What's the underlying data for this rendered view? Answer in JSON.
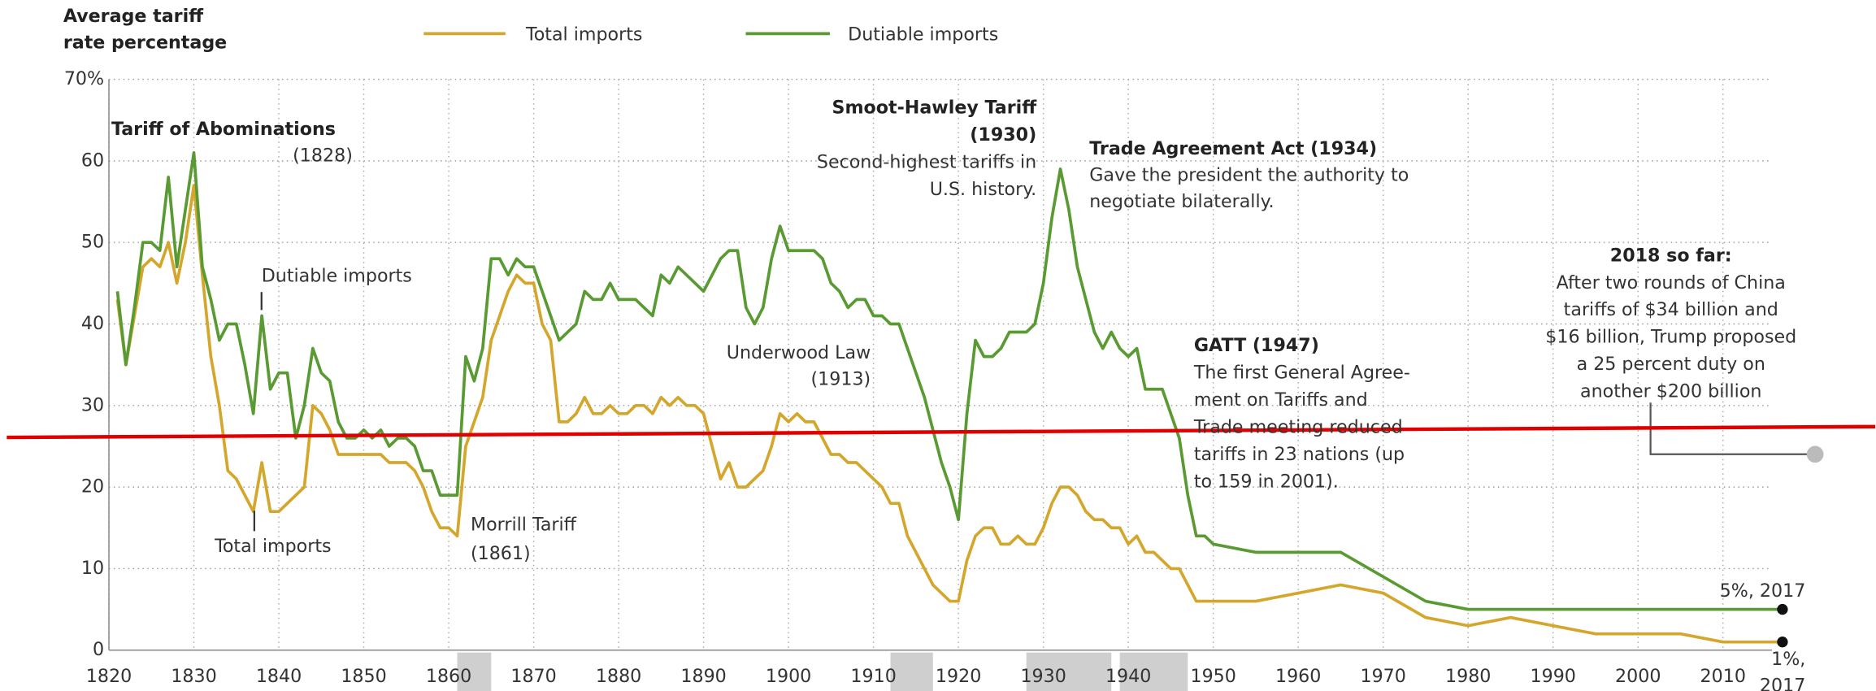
{
  "chart_data": {
    "type": "line",
    "y_label": [
      "Average tariff",
      "rate percentage"
    ],
    "x": [
      1821,
      1822,
      1823,
      1824,
      1825,
      1826,
      1827,
      1828,
      1829,
      1830,
      1831,
      1832,
      1833,
      1834,
      1835,
      1836,
      1837,
      1838,
      1839,
      1840,
      1841,
      1842,
      1843,
      1844,
      1845,
      1846,
      1847,
      1848,
      1849,
      1850,
      1851,
      1852,
      1853,
      1854,
      1855,
      1856,
      1857,
      1858,
      1859,
      1860,
      1861,
      1862,
      1863,
      1864,
      1865,
      1866,
      1867,
      1868,
      1869,
      1870,
      1871,
      1872,
      1873,
      1874,
      1875,
      1876,
      1877,
      1878,
      1879,
      1880,
      1881,
      1882,
      1883,
      1884,
      1885,
      1886,
      1887,
      1888,
      1889,
      1890,
      1891,
      1892,
      1893,
      1894,
      1895,
      1896,
      1897,
      1898,
      1899,
      1900,
      1901,
      1902,
      1903,
      1904,
      1905,
      1906,
      1907,
      1908,
      1909,
      1910,
      1911,
      1912,
      1913,
      1914,
      1915,
      1916,
      1917,
      1918,
      1919,
      1920,
      1921,
      1922,
      1923,
      1924,
      1925,
      1926,
      1927,
      1928,
      1929,
      1930,
      1931,
      1932,
      1933,
      1934,
      1935,
      1936,
      1937,
      1938,
      1939,
      1940,
      1941,
      1942,
      1943,
      1944,
      1945,
      1946,
      1947,
      1948,
      1949,
      1950,
      1955,
      1960,
      1965,
      1970,
      1975,
      1980,
      1985,
      1990,
      1995,
      2000,
      2005,
      2010,
      2015,
      2017
    ],
    "series": [
      {
        "name": "Total imports",
        "color": "#d4a72c",
        "values": [
          43,
          35,
          41,
          47,
          48,
          47,
          50,
          45,
          50,
          57,
          46,
          36,
          30,
          22,
          21,
          19,
          17,
          23,
          17,
          17,
          18,
          19,
          20,
          30,
          29,
          27,
          24,
          24,
          24,
          24,
          24,
          24,
          23,
          23,
          23,
          22,
          20,
          17,
          15,
          15,
          14,
          25,
          28,
          31,
          38,
          41,
          44,
          46,
          45,
          45,
          40,
          38,
          28,
          28,
          29,
          31,
          29,
          29,
          30,
          29,
          29,
          30,
          30,
          29,
          31,
          30,
          31,
          30,
          30,
          29,
          25,
          21,
          23,
          20,
          20,
          21,
          22,
          25,
          29,
          28,
          29,
          28,
          28,
          26,
          24,
          24,
          23,
          23,
          22,
          21,
          20,
          18,
          18,
          14,
          12,
          10,
          8,
          7,
          6,
          6,
          11,
          14,
          15,
          15,
          13,
          13,
          14,
          13,
          13,
          15,
          18,
          20,
          20,
          19,
          17,
          16,
          16,
          15,
          15,
          13,
          14,
          12,
          12,
          11,
          10,
          10,
          8,
          6,
          6,
          6,
          6,
          7,
          8,
          7,
          4,
          3,
          4,
          3,
          2,
          2,
          2,
          1,
          1,
          1
        ]
      },
      {
        "name": "Dutiable imports",
        "color": "#5a9a32",
        "values": [
          44,
          35,
          42,
          50,
          50,
          49,
          58,
          47,
          54,
          61,
          47,
          43,
          38,
          40,
          40,
          35,
          29,
          41,
          32,
          34,
          34,
          26,
          30,
          37,
          34,
          33,
          28,
          26,
          26,
          27,
          26,
          27,
          25,
          26,
          26,
          25,
          22,
          22,
          19,
          19,
          19,
          36,
          33,
          37,
          48,
          48,
          46,
          48,
          47,
          47,
          44,
          41,
          38,
          39,
          40,
          44,
          43,
          43,
          45,
          43,
          43,
          43,
          42,
          41,
          46,
          45,
          47,
          46,
          45,
          44,
          46,
          48,
          49,
          49,
          42,
          40,
          42,
          48,
          52,
          49,
          49,
          49,
          49,
          48,
          45,
          44,
          42,
          43,
          43,
          41,
          41,
          40,
          40,
          37,
          34,
          31,
          27,
          23,
          20,
          16,
          29,
          38,
          36,
          36,
          37,
          39,
          39,
          39,
          40,
          45,
          53,
          59,
          54,
          47,
          43,
          39,
          37,
          39,
          37,
          36,
          37,
          32,
          32,
          32,
          29,
          26,
          19,
          14,
          14,
          13,
          12,
          12,
          12,
          9,
          6,
          5,
          5,
          5,
          5,
          5,
          5,
          5,
          5,
          5
        ]
      }
    ],
    "xlim": [
      1820,
      2020
    ],
    "xticks": [
      1820,
      1830,
      1840,
      1850,
      1860,
      1870,
      1880,
      1890,
      1900,
      1910,
      1920,
      1930,
      1940,
      1950,
      1960,
      1970,
      1980,
      1990,
      2000,
      2010
    ],
    "ylim": [
      0,
      70
    ],
    "yticks": [
      0,
      10,
      20,
      30,
      40,
      50,
      60,
      {
        "value": 70,
        "label": "70%"
      }
    ],
    "grid": true,
    "shaded_periods": [
      [
        1861,
        1865
      ],
      [
        1912,
        1917
      ],
      [
        1928,
        1938
      ],
      [
        1939,
        1947
      ]
    ],
    "annotations": [
      {
        "lines": [
          "Tariff of Abominations",
          "(1828)"
        ]
      },
      {
        "lines": [
          "Dutiable imports"
        ]
      },
      {
        "lines": [
          "Total imports"
        ]
      },
      {
        "lines": [
          "Morrill Tariff",
          "(1861)"
        ]
      },
      {
        "lines": [
          "Underwood Law",
          "(1913)"
        ]
      },
      {
        "lines": [
          "Smoot-Hawley Tariff",
          "(1930)",
          "Second-highest tariffs in",
          "U.S. history."
        ]
      },
      {
        "lines": [
          "Trade Agreement Act (1934)",
          "Gave the president the authority to",
          "negotiate bilaterally."
        ]
      },
      {
        "lines": [
          "GATT (1947)",
          "The first General Agree-",
          "ment on Tariffs and",
          "Trade meeting reduced",
          "tariffs in 23 nations (up",
          "to 159 in 2001)."
        ]
      },
      {
        "lines": [
          "2018 so far:",
          "After two rounds of China",
          "tariffs of $34 billion and",
          "$16 billion, Trump proposed",
          "a 25 percent duty on",
          "another $200 billion"
        ]
      },
      {
        "lines": [
          "5%, 2017"
        ]
      },
      {
        "lines": [
          "1%,",
          "2017"
        ]
      }
    ]
  }
}
